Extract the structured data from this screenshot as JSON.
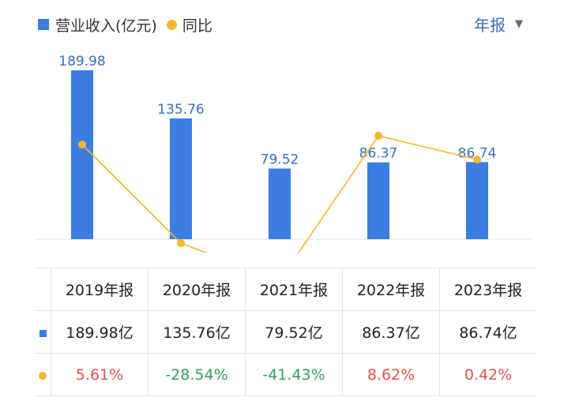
{
  "colors": {
    "bar": "#3b7de0",
    "line": "#f2b632",
    "value_label": "#3a6fb8",
    "positive": "#d9534f",
    "negative": "#2e9e5f",
    "period": "#3a6fb8"
  },
  "legend": {
    "revenue": "营业收入(亿元)",
    "yoy": "同比"
  },
  "period_selector": {
    "label": "年报",
    "icon": "caret-down-icon"
  },
  "chart_data": {
    "type": "bar",
    "categories": [
      "2019年报",
      "2020年报",
      "2021年报",
      "2022年报",
      "2023年报"
    ],
    "series": [
      {
        "name": "营业收入(亿元)",
        "type": "bar",
        "values": [
          189.98,
          135.76,
          79.52,
          86.37,
          86.74
        ],
        "labels": [
          "189.98",
          "135.76",
          "79.52",
          "86.37",
          "86.74"
        ]
      },
      {
        "name": "同比",
        "type": "line",
        "values": [
          5.61,
          -28.54,
          -41.43,
          8.62,
          0.42
        ]
      }
    ],
    "ylim": [
      0,
      200
    ],
    "grid": false,
    "legend_position": "top-left"
  },
  "table": {
    "headers": [
      "2019年报",
      "2020年报",
      "2021年报",
      "2022年报",
      "2023年报"
    ],
    "revenue_row": [
      "189.98亿",
      "135.76亿",
      "79.52亿",
      "86.37亿",
      "86.74亿"
    ],
    "yoy_row": [
      "5.61%",
      "-28.54%",
      "-41.43%",
      "8.62%",
      "0.42%"
    ]
  }
}
